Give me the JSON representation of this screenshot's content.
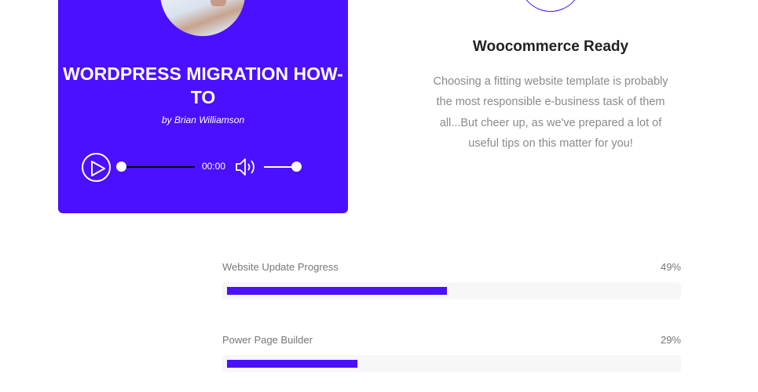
{
  "card": {
    "title": "WORDPRESS MIGRATION HOW-TO",
    "byline": "by Brian Williamson",
    "player": {
      "time": "00:00",
      "progress": 0,
      "volume": 0.85,
      "play_icon": "play-icon",
      "volume_icon": "volume-icon"
    },
    "accent": "#4a10ff"
  },
  "feature": {
    "title": "Woocommerce Ready",
    "text": "Choosing a fitting website template is probably the most responsible e-business task of them all...But cheer up, as we've prepared a lot of useful tips on this matter for you!"
  },
  "progress": [
    {
      "label": "Website Update Progress",
      "value": 49,
      "display": "49%"
    },
    {
      "label": "Power Page Builder",
      "value": 29,
      "display": "29%"
    }
  ]
}
